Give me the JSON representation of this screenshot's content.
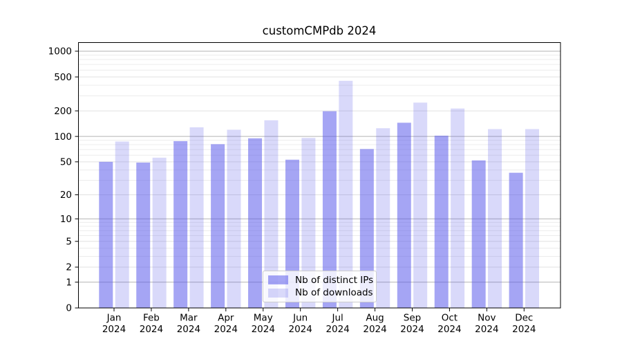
{
  "chart_data": {
    "type": "bar",
    "title": "customCMPdb 2024",
    "categories": [
      "Jan\n2024",
      "Feb\n2024",
      "Mar\n2024",
      "Apr\n2024",
      "May\n2024",
      "Jun\n2024",
      "Jul\n2024",
      "Aug\n2024",
      "Sep\n2024",
      "Oct\n2024",
      "Nov\n2024",
      "Dec\n2024"
    ],
    "series": [
      {
        "name": "Nb of distinct IPs",
        "color": "rgba(82,82,233,0.52)",
        "values": [
          50,
          49,
          88,
          81,
          95,
          53,
          198,
          71,
          145,
          102,
          52,
          37
        ]
      },
      {
        "name": "Nb of downloads",
        "color": "rgba(82,82,233,0.22)",
        "values": [
          87,
          56,
          128,
          120,
          155,
          96,
          450,
          125,
          250,
          213,
          122,
          122
        ]
      }
    ],
    "xlabel": "",
    "ylabel": "",
    "yscale": "log1p",
    "ylim": [
      0,
      1250
    ],
    "yticks": [
      0,
      1,
      2,
      5,
      10,
      20,
      50,
      100,
      200,
      500,
      1000
    ],
    "minor_yticks": [
      3,
      4,
      6,
      7,
      8,
      9,
      30,
      40,
      60,
      70,
      80,
      90,
      300,
      400,
      600,
      700,
      800,
      900
    ],
    "grid": true,
    "legend_position": "lower center"
  },
  "colors": {
    "bar_distinct_ips_on_white": "#a5a5f3",
    "bar_downloads_on_white": "#d9d9fa",
    "grid_major": "#b3b3b3",
    "grid_labeled": "#e1e1e1",
    "grid_minor": "#ececec",
    "axis": "#000000",
    "background": "#ffffff"
  }
}
